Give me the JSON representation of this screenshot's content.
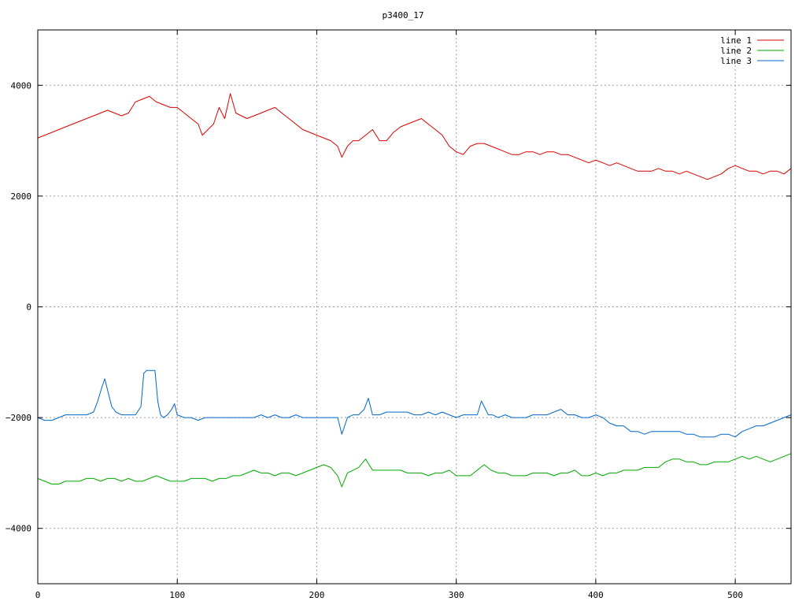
{
  "chart_data": {
    "type": "line",
    "title": "p3400_17",
    "xlabel": "",
    "ylabel": "",
    "xlim": [
      0,
      540
    ],
    "ylim": [
      -5000,
      5000
    ],
    "xticks": [
      0,
      100,
      200,
      300,
      400,
      500
    ],
    "xtick_labels": [
      "0",
      "100",
      "200",
      "300",
      "400",
      "500"
    ],
    "yticks": [
      -4000,
      -2000,
      0,
      2000,
      4000
    ],
    "ytick_labels": [
      "−4000",
      "−2000",
      "0",
      "2000",
      "4000"
    ],
    "grid": true,
    "legend_position": "top-right",
    "series": [
      {
        "name": "line 1",
        "color": "#dd0000",
        "x": [
          0,
          5,
          10,
          15,
          20,
          25,
          30,
          35,
          40,
          45,
          50,
          55,
          60,
          65,
          70,
          75,
          80,
          85,
          90,
          95,
          100,
          105,
          110,
          115,
          118,
          122,
          126,
          130,
          134,
          138,
          142,
          146,
          150,
          155,
          160,
          165,
          170,
          175,
          180,
          185,
          190,
          195,
          200,
          205,
          210,
          215,
          218,
          222,
          226,
          230,
          235,
          240,
          245,
          250,
          255,
          260,
          265,
          270,
          275,
          280,
          285,
          290,
          295,
          300,
          305,
          310,
          315,
          320,
          325,
          330,
          335,
          340,
          345,
          350,
          355,
          360,
          365,
          370,
          375,
          380,
          385,
          390,
          395,
          400,
          405,
          410,
          415,
          420,
          425,
          430,
          435,
          440,
          445,
          450,
          455,
          460,
          465,
          470,
          475,
          480,
          485,
          490,
          495,
          500,
          505,
          510,
          515,
          520,
          525,
          530,
          535,
          540
        ],
        "y": [
          3050,
          3100,
          3150,
          3200,
          3250,
          3300,
          3350,
          3400,
          3450,
          3500,
          3550,
          3500,
          3450,
          3500,
          3700,
          3750,
          3800,
          3700,
          3650,
          3600,
          3600,
          3500,
          3400,
          3300,
          3100,
          3200,
          3300,
          3600,
          3400,
          3850,
          3500,
          3450,
          3400,
          3450,
          3500,
          3550,
          3600,
          3500,
          3400,
          3300,
          3200,
          3150,
          3100,
          3050,
          3000,
          2900,
          2700,
          2900,
          3000,
          3000,
          3100,
          3200,
          3000,
          3000,
          3150,
          3250,
          3300,
          3350,
          3400,
          3300,
          3200,
          3100,
          2900,
          2800,
          2750,
          2900,
          2950,
          2950,
          2900,
          2850,
          2800,
          2750,
          2750,
          2800,
          2800,
          2750,
          2800,
          2800,
          2750,
          2750,
          2700,
          2650,
          2600,
          2650,
          2600,
          2550,
          2600,
          2550,
          2500,
          2450,
          2450,
          2450,
          2500,
          2450,
          2450,
          2400,
          2450,
          2400,
          2350,
          2300,
          2350,
          2400,
          2500,
          2550,
          2500,
          2450,
          2450,
          2400,
          2450,
          2450,
          2400,
          2500
        ]
      },
      {
        "name": "line 2",
        "color": "#00aa00",
        "x": [
          0,
          5,
          10,
          15,
          20,
          25,
          30,
          35,
          40,
          45,
          50,
          55,
          60,
          65,
          70,
          75,
          80,
          85,
          90,
          95,
          100,
          105,
          110,
          115,
          120,
          125,
          130,
          135,
          140,
          145,
          150,
          155,
          160,
          165,
          170,
          175,
          180,
          185,
          190,
          195,
          200,
          205,
          210,
          215,
          218,
          222,
          226,
          230,
          235,
          240,
          245,
          250,
          255,
          260,
          265,
          270,
          275,
          280,
          285,
          290,
          295,
          300,
          305,
          310,
          315,
          320,
          325,
          330,
          335,
          340,
          345,
          350,
          355,
          360,
          365,
          370,
          375,
          380,
          385,
          390,
          395,
          400,
          405,
          410,
          415,
          420,
          425,
          430,
          435,
          440,
          445,
          450,
          455,
          460,
          465,
          470,
          475,
          480,
          485,
          490,
          495,
          500,
          505,
          510,
          515,
          520,
          525,
          530,
          535,
          540
        ],
        "y": [
          -3100,
          -3150,
          -3200,
          -3200,
          -3150,
          -3150,
          -3150,
          -3100,
          -3100,
          -3150,
          -3100,
          -3100,
          -3150,
          -3100,
          -3150,
          -3150,
          -3100,
          -3050,
          -3100,
          -3150,
          -3150,
          -3150,
          -3100,
          -3100,
          -3100,
          -3150,
          -3100,
          -3100,
          -3050,
          -3050,
          -3000,
          -2950,
          -3000,
          -3000,
          -3050,
          -3000,
          -3000,
          -3050,
          -3000,
          -2950,
          -2900,
          -2850,
          -2900,
          -3050,
          -3250,
          -3000,
          -2950,
          -2900,
          -2750,
          -2950,
          -2950,
          -2950,
          -2950,
          -2950,
          -3000,
          -3000,
          -3000,
          -3050,
          -3000,
          -3000,
          -2950,
          -3050,
          -3050,
          -3050,
          -2950,
          -2850,
          -2950,
          -3000,
          -3000,
          -3050,
          -3050,
          -3050,
          -3000,
          -3000,
          -3000,
          -3050,
          -3000,
          -3000,
          -2950,
          -3050,
          -3050,
          -3000,
          -3050,
          -3000,
          -3000,
          -2950,
          -2950,
          -2950,
          -2900,
          -2900,
          -2900,
          -2800,
          -2750,
          -2750,
          -2800,
          -2800,
          -2850,
          -2850,
          -2800,
          -2800,
          -2800,
          -2750,
          -2700,
          -2750,
          -2700,
          -2750,
          -2800,
          -2750,
          -2700,
          -2650
        ]
      },
      {
        "name": "line 3",
        "color": "#0066cc",
        "x": [
          0,
          5,
          10,
          15,
          20,
          25,
          30,
          35,
          40,
          43,
          46,
          48,
          50,
          53,
          56,
          60,
          65,
          70,
          74,
          76,
          78,
          80,
          82,
          84,
          86,
          88,
          90,
          93,
          96,
          98,
          100,
          105,
          110,
          115,
          120,
          125,
          130,
          135,
          140,
          145,
          150,
          155,
          160,
          165,
          170,
          175,
          180,
          185,
          190,
          195,
          200,
          205,
          210,
          215,
          218,
          222,
          226,
          230,
          234,
          237,
          240,
          245,
          250,
          255,
          260,
          265,
          270,
          275,
          280,
          285,
          290,
          295,
          300,
          305,
          310,
          315,
          318,
          320,
          323,
          326,
          330,
          335,
          340,
          345,
          350,
          355,
          360,
          365,
          370,
          375,
          380,
          385,
          390,
          395,
          400,
          405,
          410,
          415,
          420,
          425,
          430,
          435,
          440,
          445,
          450,
          455,
          460,
          465,
          470,
          475,
          480,
          485,
          490,
          495,
          500,
          505,
          510,
          515,
          520,
          525,
          530,
          535,
          540
        ],
        "y": [
          -2000,
          -2050,
          -2050,
          -2000,
          -1950,
          -1950,
          -1950,
          -1950,
          -1900,
          -1700,
          -1450,
          -1300,
          -1500,
          -1800,
          -1900,
          -1950,
          -1950,
          -1950,
          -1800,
          -1200,
          -1150,
          -1150,
          -1150,
          -1150,
          -1700,
          -1950,
          -2000,
          -1950,
          -1850,
          -1750,
          -1950,
          -2000,
          -2000,
          -2050,
          -2000,
          -2000,
          -2000,
          -2000,
          -2000,
          -2000,
          -2000,
          -2000,
          -1950,
          -2000,
          -1950,
          -2000,
          -2000,
          -1950,
          -2000,
          -2000,
          -2000,
          -2000,
          -2000,
          -2000,
          -2300,
          -2000,
          -1950,
          -1950,
          -1850,
          -1650,
          -1950,
          -1950,
          -1900,
          -1900,
          -1900,
          -1900,
          -1950,
          -1950,
          -1900,
          -1950,
          -1900,
          -1950,
          -2000,
          -1950,
          -1950,
          -1950,
          -1700,
          -1800,
          -1950,
          -1950,
          -2000,
          -1950,
          -2000,
          -2000,
          -2000,
          -1950,
          -1950,
          -1950,
          -1900,
          -1850,
          -1950,
          -1950,
          -2000,
          -2000,
          -1950,
          -2000,
          -2100,
          -2150,
          -2150,
          -2250,
          -2250,
          -2300,
          -2250,
          -2250,
          -2250,
          -2250,
          -2250,
          -2300,
          -2300,
          -2350,
          -2350,
          -2350,
          -2300,
          -2300,
          -2350,
          -2250,
          -2200,
          -2150,
          -2150,
          -2100,
          -2050,
          -2000,
          -1950
        ]
      }
    ]
  }
}
